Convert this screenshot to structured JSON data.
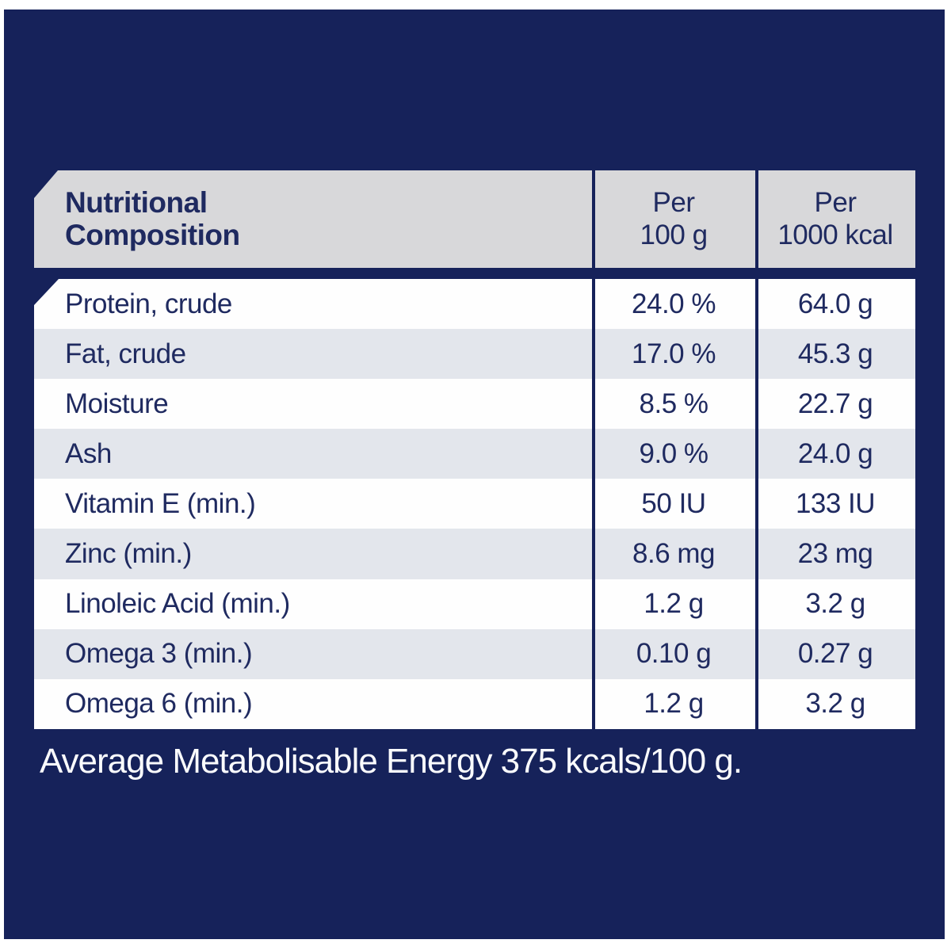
{
  "colors": {
    "navy_background": "#16225a",
    "text_navy": "#1f2a60",
    "header_gray": "#d8d8da",
    "row_white": "#fefefe",
    "row_gray": "#e3e6ec",
    "footer_text": "#fafbfd",
    "page_edge": "#ffffff"
  },
  "table": {
    "header": {
      "title_line1": "Nutritional",
      "title_line2": "Composition",
      "col2_line1": "Per",
      "col2_line2": "100 g",
      "col3_line1": "Per",
      "col3_line2": "1000 kcal"
    },
    "rows": [
      {
        "label": "Protein, crude",
        "per_100g": "24.0 %",
        "per_1000kcal": "64.0 g"
      },
      {
        "label": "Fat, crude",
        "per_100g": "17.0 %",
        "per_1000kcal": "45.3 g"
      },
      {
        "label": "Moisture",
        "per_100g": "8.5 %",
        "per_1000kcal": "22.7 g"
      },
      {
        "label": "Ash",
        "per_100g": "9.0 %",
        "per_1000kcal": "24.0 g"
      },
      {
        "label": "Vitamin E (min.)",
        "per_100g": "50 IU",
        "per_1000kcal": "133 IU"
      },
      {
        "label": "Zinc (min.)",
        "per_100g": "8.6 mg",
        "per_1000kcal": "23 mg"
      },
      {
        "label": "Linoleic Acid (min.)",
        "per_100g": "1.2 g",
        "per_1000kcal": "3.2 g"
      },
      {
        "label": "Omega 3 (min.)",
        "per_100g": "0.10 g",
        "per_1000kcal": "0.27 g"
      },
      {
        "label": "Omega 6 (min.)",
        "per_100g": "1.2 g",
        "per_1000kcal": "3.2 g"
      }
    ]
  },
  "footer": {
    "energy_note": "Average Metabolisable Energy 375 kcals/100 g."
  }
}
